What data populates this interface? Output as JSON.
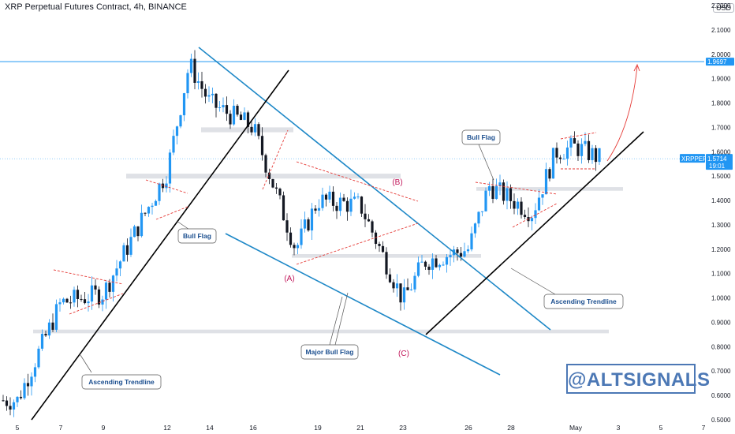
{
  "header": {
    "title": "XRP Perpetual Futures Contract, 4h, BINANCE",
    "currency": "USD"
  },
  "price_tags": {
    "symbol": "XRPPERP",
    "last_price": "1.5714",
    "countdown": "19:01",
    "level_line": "1.9697"
  },
  "annotations": {
    "bull_flag_left": "Bull Flag",
    "bull_flag_right": "Bull Flag",
    "major_bull_flag": "Major Bull Flag",
    "ascending_trendline_left": "Ascending Trendline",
    "ascending_trendline_right": "Ascending Trendline",
    "wave_a": "(A)",
    "wave_b": "(B)",
    "wave_c": "(C)"
  },
  "watermark": "@ALTSIGNALS",
  "colors": {
    "bull_candle": "#2196f3",
    "bear_candle": "#131722",
    "channel_line": "#1e88c7",
    "trendline": "#000000",
    "flag_dash": "#e53935",
    "support_zone": "#d1d4dc",
    "level_line": "#2196f3"
  },
  "chart_data": {
    "type": "candlestick",
    "title": "XRP Perpetual Futures Contract, 4h, BINANCE",
    "y_ticks": [
      "0.5000",
      "0.6000",
      "0.7000",
      "0.8000",
      "0.9000",
      "1.0000",
      "1.1000",
      "1.2000",
      "1.3000",
      "1.4000",
      "1.5000",
      "1.6000",
      "1.7000",
      "1.8000",
      "1.9000",
      "2.0000",
      "2.1000",
      "2.2000"
    ],
    "ylim": [
      0.5,
      2.22
    ],
    "x_ticks": [
      "5",
      "7",
      "9",
      "12",
      "14",
      "16",
      "19",
      "21",
      "23",
      "26",
      "28",
      "May",
      "3",
      "5",
      "7"
    ],
    "horizontal_level": 1.9697,
    "last_price": 1.5714,
    "close_path_points": [
      {
        "x": "5",
        "y": 0.58
      },
      {
        "x": "7",
        "y": 0.98
      },
      {
        "x": "9",
        "y": 1.02
      },
      {
        "x": "12",
        "y": 1.52
      },
      {
        "x": "13",
        "y": 1.96
      },
      {
        "x": "14",
        "y": 1.8
      },
      {
        "x": "16",
        "y": 1.7
      },
      {
        "x": "18",
        "y": 1.2
      },
      {
        "x": "19",
        "y": 1.4
      },
      {
        "x": "21",
        "y": 1.38
      },
      {
        "x": "23",
        "y": 0.99
      },
      {
        "x": "24",
        "y": 1.15
      },
      {
        "x": "26",
        "y": 1.2
      },
      {
        "x": "27",
        "y": 1.46
      },
      {
        "x": "29",
        "y": 1.35
      },
      {
        "x": "30",
        "y": 1.6
      },
      {
        "x": "May",
        "y": 1.62
      },
      {
        "x": "2",
        "y": 1.571
      }
    ],
    "support_zones": [
      0.87,
      1.175,
      1.5,
      1.45,
      1.69
    ]
  }
}
